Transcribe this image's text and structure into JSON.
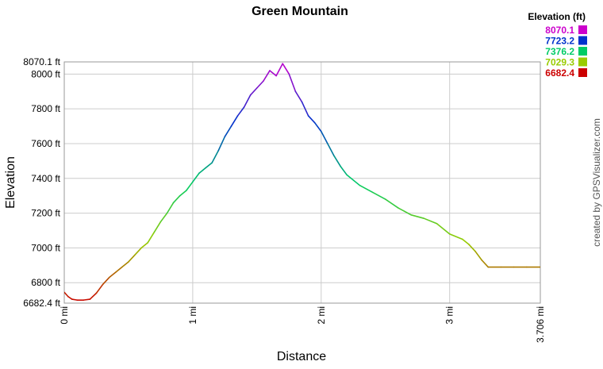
{
  "chart_data": {
    "type": "line",
    "title": "Green Mountain",
    "xlabel": "Distance",
    "ylabel": "Elevation",
    "xlim": [
      0,
      3.706
    ],
    "ylim": [
      6682.4,
      8070.1
    ],
    "x_ticks": [
      {
        "value": 0,
        "label": "0 mi"
      },
      {
        "value": 1,
        "label": "1 mi"
      },
      {
        "value": 2,
        "label": "2 mi"
      },
      {
        "value": 3,
        "label": "3 mi"
      },
      {
        "value": 3.706,
        "label": "3.706 mi"
      }
    ],
    "y_ticks": [
      {
        "value": 6682.4,
        "label": "6682.4 ft"
      },
      {
        "value": 6800,
        "label": "6800 ft"
      },
      {
        "value": 7000,
        "label": "7000 ft"
      },
      {
        "value": 7200,
        "label": "7200 ft"
      },
      {
        "value": 7400,
        "label": "7400 ft"
      },
      {
        "value": 7600,
        "label": "7600 ft"
      },
      {
        "value": 7800,
        "label": "7800 ft"
      },
      {
        "value": 8000,
        "label": "8000 ft"
      },
      {
        "value": 8070.1,
        "label": "8070.1 ft"
      }
    ],
    "grid": true,
    "legend": {
      "title": "Elevation (ft)",
      "placement": "top-right",
      "entries": [
        {
          "label": "8070.1",
          "color": "#cc00cc"
        },
        {
          "label": "7723.2",
          "color": "#0033cc"
        },
        {
          "label": "7376.2",
          "color": "#00cc66"
        },
        {
          "label": "7029.3",
          "color": "#99cc00"
        },
        {
          "label": "6682.4",
          "color": "#cc0000"
        }
      ]
    },
    "series": [
      {
        "x": [
          0,
          0.03,
          0.06,
          0.1,
          0.15,
          0.2,
          0.25,
          0.3,
          0.35,
          0.4,
          0.45,
          0.5,
          0.55,
          0.6,
          0.65,
          0.7,
          0.75,
          0.8,
          0.85,
          0.9,
          0.95,
          1.0,
          1.05,
          1.1,
          1.15,
          1.2,
          1.25,
          1.3,
          1.35,
          1.4,
          1.45,
          1.5,
          1.55,
          1.6,
          1.65,
          1.7,
          1.75,
          1.8,
          1.85,
          1.9,
          1.95,
          2.0,
          2.05,
          2.1,
          2.15,
          2.2,
          2.3,
          2.4,
          2.5,
          2.6,
          2.7,
          2.8,
          2.9,
          3.0,
          3.1,
          3.15,
          3.2,
          3.25,
          3.3,
          3.4,
          3.5,
          3.6,
          3.706
        ],
        "y": [
          6745,
          6720,
          6705,
          6700,
          6700,
          6705,
          6740,
          6790,
          6830,
          6860,
          6890,
          6920,
          6960,
          7000,
          7030,
          7090,
          7150,
          7200,
          7260,
          7300,
          7330,
          7380,
          7430,
          7460,
          7490,
          7560,
          7640,
          7700,
          7760,
          7810,
          7880,
          7920,
          7960,
          8020,
          7990,
          8060,
          8000,
          7900,
          7840,
          7760,
          7720,
          7670,
          7600,
          7530,
          7470,
          7420,
          7360,
          7320,
          7280,
          7230,
          7190,
          7170,
          7140,
          7080,
          7050,
          7020,
          6980,
          6930,
          6890,
          6890,
          6890,
          6890,
          6890
        ]
      }
    ]
  },
  "credit_text": "created by GPSVisualizer.com"
}
